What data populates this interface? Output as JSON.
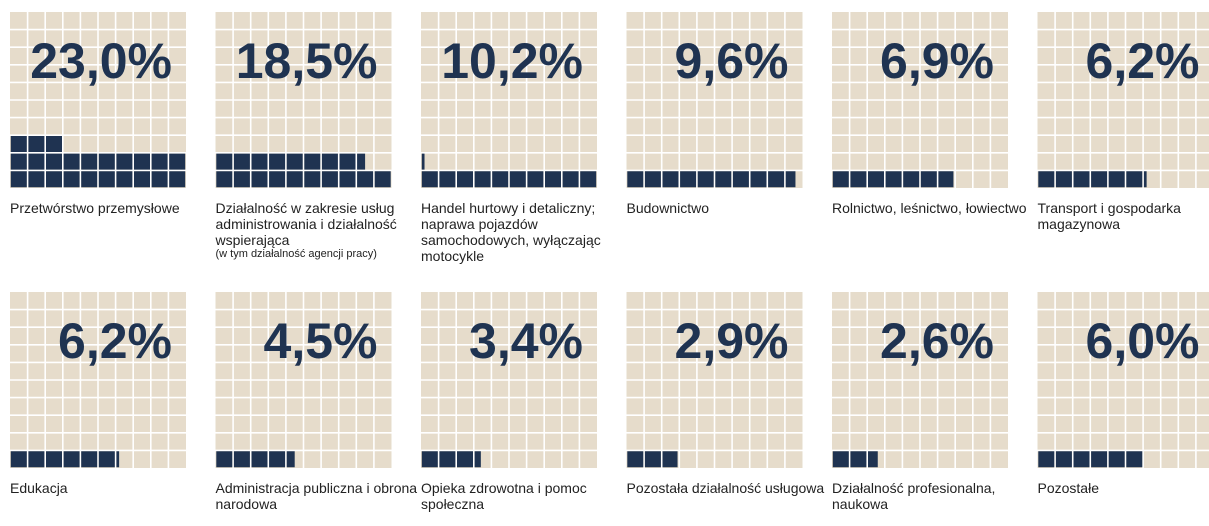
{
  "chart_data": {
    "type": "waffle",
    "categories": [
      "Przetwórstwo przemysłowe",
      "Działalność w zakresie usług administrowania i działalność wspierająca",
      "Handel hurtowy i detaliczny; naprawa pojazdów samochodowych, wyłączając motocykle",
      "Budownictwo",
      "Rolnictwo, leśnictwo, łowiectwo",
      "Transport i gospodarka magazynowa",
      "Edukacja",
      "Administracja publiczna i obrona narodowa",
      "Opieka zdrowotna i pomoc społeczna",
      "Pozostała działalność usługowa",
      "Działalność profesionalna, naukowa",
      "Pozostałe"
    ],
    "category_notes": [
      null,
      "(w tym działalność agencji pracy)",
      null,
      null,
      null,
      null,
      null,
      null,
      null,
      null,
      null,
      null
    ],
    "values": [
      23.0,
      18.5,
      10.2,
      9.6,
      6.9,
      6.2,
      6.2,
      4.5,
      3.4,
      2.9,
      2.6,
      6.0
    ],
    "value_labels": [
      "23,0%",
      "18,5%",
      "10,2%",
      "9,6%",
      "6,9%",
      "6,2%",
      "6,2%",
      "4,5%",
      "3,4%",
      "2,9%",
      "2,6%",
      "6,0%"
    ],
    "color": "#1f3351",
    "background_color": "#e6dccb"
  }
}
